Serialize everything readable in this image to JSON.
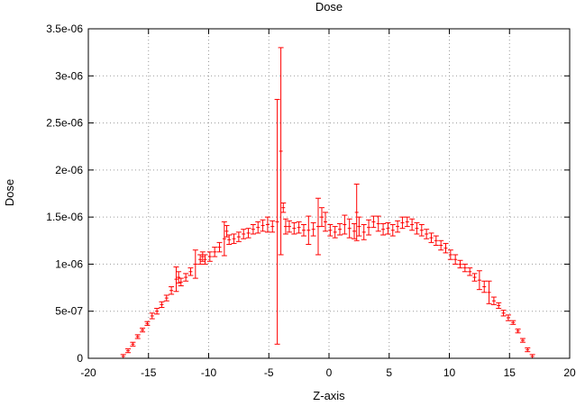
{
  "chart_data": {
    "type": "line",
    "title": "Dose",
    "xlabel": "Z-axis",
    "ylabel": "Dose",
    "xlim": [
      -20,
      20
    ],
    "ylim": [
      0,
      3.5e-06
    ],
    "x_ticks": [
      -20,
      -15,
      -10,
      -5,
      0,
      5,
      10,
      15,
      20
    ],
    "x_tick_labels": [
      "-20",
      "-15",
      "-10",
      "-5",
      "0",
      "5",
      "10",
      "15",
      "20"
    ],
    "y_ticks": [
      0,
      5e-07,
      1e-06,
      1.5e-06,
      2e-06,
      2.5e-06,
      3e-06,
      3.5e-06
    ],
    "y_tick_labels": [
      "0",
      "5e-07",
      "1e-06",
      "1.5e-06",
      "2e-06",
      "2.5e-06",
      "3e-06",
      "3.5e-06"
    ],
    "grid": true,
    "series_color": "#ff0000",
    "series": [
      {
        "style": "errorbars",
        "x": [
          -17.1,
          -16.7,
          -16.3,
          -15.9,
          -15.5,
          -15.1,
          -14.7,
          -14.3,
          -13.9,
          -13.5,
          -13.1,
          -12.7,
          -12.5,
          -12.3,
          -11.9,
          -11.5,
          -11.1,
          -10.7,
          -10.5,
          -10.3,
          -9.9,
          -9.5,
          -9.1,
          -8.7,
          -8.5,
          -8.3,
          -7.9,
          -7.5,
          -7.1,
          -6.7,
          -6.3,
          -5.9,
          -5.5,
          -5.1,
          -4.7,
          -4.3,
          -4.0,
          -3.8,
          -3.6,
          -3.3,
          -2.9,
          -2.5,
          -2.1,
          -1.7,
          -1.3,
          -0.9,
          -0.6,
          -0.3,
          0.1,
          0.5,
          0.9,
          1.3,
          1.7,
          2.1,
          2.3,
          2.5,
          2.9,
          3.3,
          3.7,
          4.1,
          4.5,
          4.9,
          5.3,
          5.7,
          6.1,
          6.5,
          6.9,
          7.3,
          7.7,
          8.1,
          8.5,
          8.9,
          9.3,
          9.7,
          10.1,
          10.5,
          10.9,
          11.3,
          11.7,
          12.1,
          12.5,
          12.9,
          13.3,
          13.7,
          14.1,
          14.5,
          14.9,
          15.3,
          15.7,
          16.1,
          16.5,
          16.9
        ],
        "y": [
          2e-08,
          8e-08,
          1.5e-07,
          2.3e-07,
          3e-07,
          3.7e-07,
          4.5e-07,
          5e-07,
          5.7e-07,
          6.4e-07,
          7.2e-07,
          8.4e-07,
          8.6e-07,
          8.1e-07,
          8.6e-07,
          9.2e-07,
          1e-06,
          1.05e-06,
          1.08e-06,
          1.05e-06,
          1.08e-06,
          1.13e-06,
          1.18e-06,
          1.27e-06,
          1.35e-06,
          1.26e-06,
          1.27e-06,
          1.29e-06,
          1.32e-06,
          1.33e-06,
          1.37e-06,
          1.39e-06,
          1.41e-06,
          1.42e-06,
          1.4e-06,
          1.45e-06,
          2.2e-06,
          1.6e-06,
          1.4e-06,
          1.4e-06,
          1.38e-06,
          1.39e-06,
          1.36e-06,
          1.36e-06,
          1.37e-06,
          1.4e-06,
          1.5e-06,
          1.45e-06,
          1.36e-06,
          1.34e-06,
          1.37e-06,
          1.42e-06,
          1.38e-06,
          1.35e-06,
          1.55e-06,
          1.4e-06,
          1.34e-06,
          1.39e-06,
          1.45e-06,
          1.43e-06,
          1.37e-06,
          1.38e-06,
          1.36e-06,
          1.4e-06,
          1.44e-06,
          1.45e-06,
          1.42e-06,
          1.38e-06,
          1.36e-06,
          1.32e-06,
          1.28e-06,
          1.25e-06,
          1.2e-06,
          1.17e-06,
          1.1e-06,
          1.05e-06,
          1e-06,
          9.6e-07,
          9.2e-07,
          8.6e-07,
          8.3e-07,
          7.6e-07,
          7e-07,
          6.1e-07,
          5.6e-07,
          4.8e-07,
          4.3e-07,
          3.8e-07,
          2.9e-07,
          1.9e-07,
          9e-08,
          2e-08
        ],
        "err": [
          2e-08,
          2e-08,
          2e-08,
          2e-08,
          2e-08,
          2e-08,
          3e-08,
          3e-08,
          3e-08,
          3e-08,
          4e-08,
          1.3e-07,
          6e-08,
          4e-08,
          4e-08,
          4e-08,
          1.5e-07,
          5e-08,
          5e-08,
          5e-08,
          5e-08,
          5e-08,
          5e-08,
          1.8e-07,
          6e-08,
          5e-08,
          5e-08,
          5e-08,
          5e-08,
          5e-08,
          5e-08,
          6e-08,
          6e-08,
          8e-08,
          6e-08,
          1.3e-06,
          1.1e-06,
          5e-08,
          8e-08,
          6e-08,
          6e-08,
          6e-08,
          6e-08,
          1.5e-07,
          7e-08,
          3e-07,
          1e-07,
          1e-07,
          6e-08,
          6e-08,
          6e-08,
          1e-07,
          1e-07,
          8e-08,
          3e-07,
          1e-07,
          8e-08,
          8e-08,
          6e-08,
          8e-08,
          6e-08,
          6e-08,
          6e-08,
          6e-08,
          6e-08,
          5e-08,
          6e-08,
          6e-08,
          6e-08,
          5e-08,
          5e-08,
          5e-08,
          5e-08,
          5e-08,
          5e-08,
          5e-08,
          4e-08,
          4e-08,
          4e-08,
          4e-08,
          1e-07,
          6e-08,
          1.2e-07,
          4e-08,
          3e-08,
          3e-08,
          3e-08,
          2e-08,
          2e-08,
          2e-08,
          2e-08,
          2e-08
        ]
      }
    ]
  }
}
